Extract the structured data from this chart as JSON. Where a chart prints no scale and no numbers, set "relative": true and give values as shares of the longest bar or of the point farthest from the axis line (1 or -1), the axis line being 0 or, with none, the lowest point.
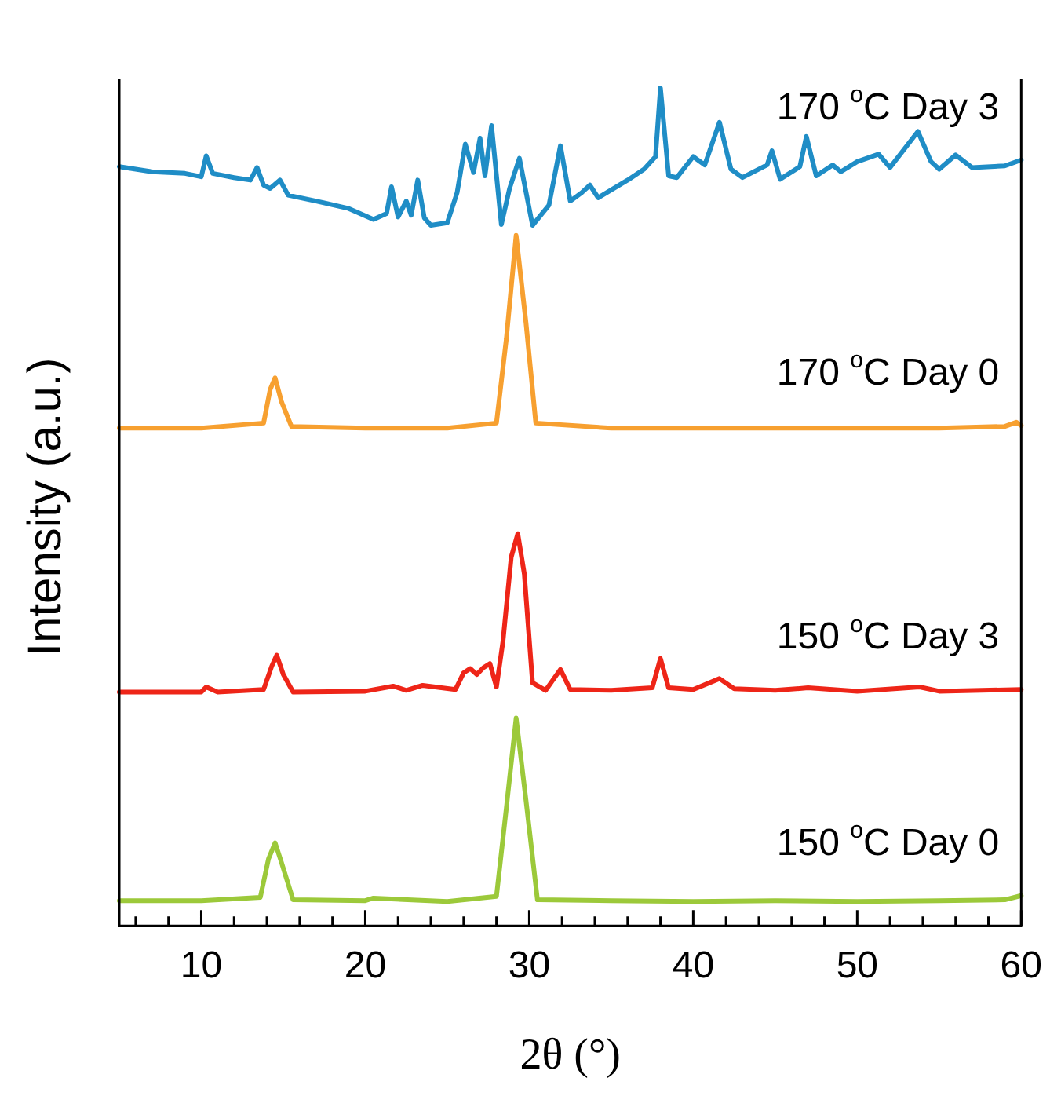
{
  "chart_data": {
    "type": "line",
    "relative": true,
    "xlabel": "2θ (°)",
    "ylabel": "Intensity (a.u.)",
    "xlim": [
      5,
      60
    ],
    "xticks": [
      {
        "value": 6,
        "label": null
      },
      {
        "value": 8,
        "label": null
      },
      10,
      {
        "value": 12,
        "label": null
      },
      {
        "value": 14,
        "label": null
      },
      {
        "value": 16,
        "label": null
      },
      {
        "value": 18,
        "label": null
      },
      20,
      {
        "value": 22,
        "label": null
      },
      {
        "value": 24,
        "label": null
      },
      {
        "value": 26,
        "label": null
      },
      {
        "value": 28,
        "label": null
      },
      30,
      {
        "value": 32,
        "label": null
      },
      {
        "value": 34,
        "label": null
      },
      {
        "value": 36,
        "label": null
      },
      {
        "value": 38,
        "label": null
      },
      40,
      {
        "value": 42,
        "label": null
      },
      {
        "value": 44,
        "label": null
      },
      {
        "value": 46,
        "label": null
      },
      {
        "value": 48,
        "label": null
      },
      50,
      {
        "value": 52,
        "label": null
      },
      {
        "value": 54,
        "label": null
      },
      {
        "value": 56,
        "label": null
      },
      {
        "value": 58,
        "label": null
      },
      60
    ],
    "grid": false,
    "legend": false,
    "marker": "none",
    "line_style": "solid",
    "series": [
      {
        "name": "170 $^{o}$C Day 3",
        "color": "#1f8dc6",
        "x": [
          5,
          7,
          9,
          10,
          10.3,
          10.7,
          12,
          13,
          13.4,
          13.8,
          14.2,
          14.8,
          15.3,
          17,
          19,
          20.5,
          21.3,
          21.6,
          22.0,
          22.5,
          22.8,
          23.2,
          23.6,
          24,
          25,
          25.6,
          26.1,
          26.6,
          27.0,
          27.3,
          27.7,
          28.3,
          28.8,
          29.4,
          30.2,
          31.2,
          31.9,
          32.5,
          33.2,
          33.7,
          34.2,
          36,
          37,
          37.7,
          38,
          38.5,
          39,
          40,
          40.7,
          41.6,
          42.3,
          43,
          44.5,
          44.8,
          45.3,
          46.5,
          46.9,
          47.5,
          48.5,
          49,
          50,
          51.3,
          52,
          53.7,
          54.5,
          55,
          56,
          57,
          59,
          60
        ],
        "values": [
          0.906,
          0.9,
          0.898,
          0.894,
          0.919,
          0.898,
          0.893,
          0.89,
          0.905,
          0.884,
          0.88,
          0.89,
          0.872,
          0.865,
          0.856,
          0.843,
          0.85,
          0.882,
          0.846,
          0.865,
          0.848,
          0.89,
          0.845,
          0.836,
          0.839,
          0.875,
          0.933,
          0.899,
          0.94,
          0.895,
          0.955,
          0.837,
          0.88,
          0.916,
          0.836,
          0.86,
          0.931,
          0.865,
          0.875,
          0.884,
          0.869,
          0.89,
          0.903,
          0.918,
          1,
          0.895,
          0.893,
          0.918,
          0.908,
          0.959,
          0.903,
          0.893,
          0.908,
          0.925,
          0.891,
          0.906,
          0.942,
          0.895,
          0.908,
          0.9,
          0.912,
          0.921,
          0.905,
          0.948,
          0.912,
          0.903,
          0.92,
          0.905,
          0.907,
          0.914
        ]
      },
      {
        "name": "170 $^{o}$C Day 0",
        "color": "#f7a030",
        "x": [
          5,
          10,
          13.8,
          14.2,
          14.5,
          14.9,
          15.5,
          20,
          25,
          28.0,
          28.6,
          29.2,
          29.8,
          30.4,
          35,
          40,
          45,
          50,
          55,
          59,
          59.7,
          60
        ],
        "values": [
          0.594,
          0.594,
          0.6,
          0.64,
          0.654,
          0.625,
          0.596,
          0.594,
          0.594,
          0.6,
          0.7,
          0.824,
          0.72,
          0.6,
          0.594,
          0.594,
          0.594,
          0.594,
          0.594,
          0.596,
          0.601,
          0.597
        ]
      },
      {
        "name": "150 $^{o}$C Day 3",
        "color": "#ee2518",
        "x": [
          5,
          10,
          10.3,
          11,
          13.8,
          14.3,
          14.6,
          15,
          15.6,
          20,
          21.7,
          22.5,
          23.5,
          25.5,
          26,
          26.4,
          26.8,
          27.2,
          27.6,
          28,
          28.4,
          28.9,
          29.3,
          29.7,
          30.2,
          31,
          31.9,
          32.5,
          35,
          37.5,
          38,
          38.5,
          40,
          41.6,
          42.5,
          45,
          47,
          50,
          53.8,
          55,
          60
        ],
        "values": [
          0.279,
          0.279,
          0.285,
          0.279,
          0.282,
          0.31,
          0.323,
          0.3,
          0.279,
          0.28,
          0.286,
          0.281,
          0.287,
          0.282,
          0.302,
          0.307,
          0.3,
          0.308,
          0.313,
          0.285,
          0.34,
          0.44,
          0.468,
          0.42,
          0.29,
          0.281,
          0.306,
          0.282,
          0.281,
          0.284,
          0.319,
          0.284,
          0.282,
          0.295,
          0.283,
          0.281,
          0.284,
          0.28,
          0.285,
          0.28,
          0.282
        ]
      },
      {
        "name": "150 $^{o}$C Day 0",
        "color": "#9cc93a",
        "x": [
          5,
          10,
          13.6,
          14.1,
          14.5,
          14.9,
          15.6,
          20,
          20.5,
          25,
          28.0,
          28.6,
          29.2,
          29.8,
          30.5,
          35,
          40,
          45,
          50,
          55,
          59,
          60
        ],
        "values": [
          0.03,
          0.03,
          0.034,
          0.08,
          0.099,
          0.075,
          0.031,
          0.03,
          0.033,
          0.029,
          0.035,
          0.14,
          0.248,
          0.15,
          0.031,
          0.03,
          0.029,
          0.03,
          0.029,
          0.03,
          0.031,
          0.036
        ]
      }
    ]
  }
}
